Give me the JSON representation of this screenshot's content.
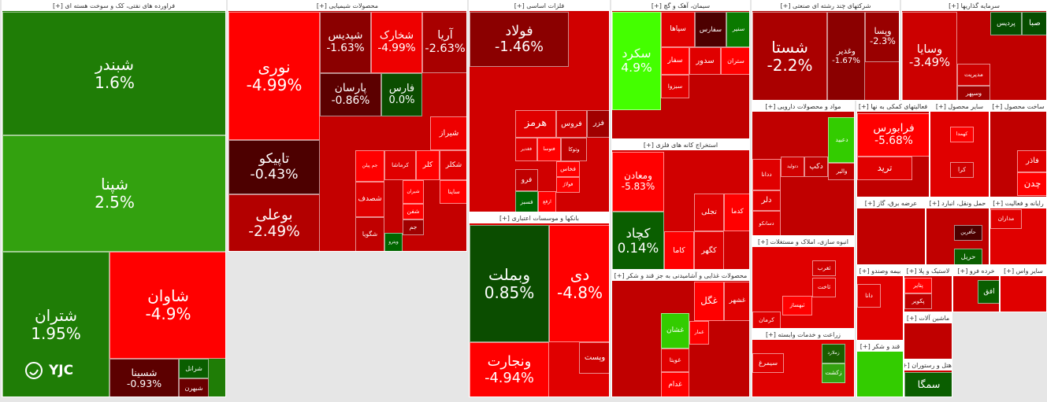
{
  "chart_data": {
    "type": "treemap",
    "logo": "YJC",
    "sectors": [
      {
        "title": "فراورده های نفتی، کک و سوخت هسته ای [+]",
        "names": [
          "شبندر",
          "شپنا",
          "شتران",
          "شاوان",
          "شسینا",
          "شرانل",
          "شبهرن"
        ],
        "values": [
          1.6,
          2.5,
          1.95,
          -4.9,
          -0.93,
          null,
          null
        ],
        "value_labels": [
          "1.6%",
          "2.5%",
          "1.95%",
          "-4.9%",
          "-0.93%",
          null,
          null
        ],
        "colors": [
          "#1f7d06",
          "#33a10f",
          "#1f7d06",
          "#ff0000",
          "#5c0000",
          "#0a5e00",
          "#6b0000"
        ]
      },
      {
        "title": "محصولات شیمیایی [+]",
        "names": [
          "نوری",
          "تاپیکو",
          "بوعلی",
          "شپدیس",
          "شخارک",
          "آریا",
          "پارسان",
          "فارس",
          "شیراز",
          "کرماشا",
          "کلر",
          "شکلر",
          "جم پیلن",
          "شصدف",
          "شگویا",
          "ساینا",
          "شیران",
          "شفن",
          "جم",
          "ویترو"
        ],
        "values": [
          -4.99,
          -0.43,
          -2.49,
          -1.63,
          -4.99,
          -2.63,
          -0.86,
          0,
          null,
          null,
          null,
          null,
          null,
          null,
          null,
          null,
          null,
          null,
          null,
          null
        ],
        "value_labels": [
          "-4.99%",
          "-0.43%",
          "-2.49%",
          "-1.63%",
          "-4.99%",
          "-2.63%",
          "-0.86%",
          "0.0%",
          null,
          null,
          null,
          null,
          null,
          null,
          null,
          null,
          null,
          null,
          null,
          null
        ],
        "colors": [
          "#ff0000",
          "#4d0000",
          "#b30000",
          "#8b0000",
          "#ee0000",
          "#a80000",
          "#5c0000",
          "#0b4d00",
          "#ee0000",
          "#e00000",
          "#ff0000",
          "#e00000",
          "#ff0000",
          "#e00000",
          "#c00000",
          "#ff0000",
          "#ff0000",
          "#ff0000",
          "#a00000",
          "#006600"
        ]
      },
      {
        "title": "فلزات اساسی [+]",
        "names": [
          "فولاد",
          "هرمز",
          "فروس",
          "فزر",
          "فغدیر",
          "فتوسا",
          "وتوکا",
          "فخاس",
          "فولاژ",
          "ارفع",
          "فسبز",
          "فرو"
        ],
        "values": [
          -1.46,
          null,
          null,
          null,
          null,
          null,
          null,
          null,
          null,
          null,
          null,
          null
        ],
        "value_labels": [
          "-1.46%",
          null,
          null,
          null,
          null,
          null,
          null,
          null,
          null,
          null,
          null,
          null
        ],
        "colors": [
          "#8b0000",
          "#e00000",
          "#d00000",
          "#a00000",
          "#e00000",
          "#ff0000",
          "#c00000",
          "#ff0000",
          "#ff0000",
          "#ff0000",
          "#006600",
          "#c00000"
        ]
      },
      {
        "title": "بانکها و موسسات اعتباری [+]",
        "names": [
          "وبملت",
          "دی",
          "ونجارت",
          "وپست"
        ],
        "values": [
          0.85,
          -4.8,
          -4.94,
          null
        ],
        "value_labels": [
          "0.85%",
          "-4.8%",
          "-4.94%",
          null
        ],
        "colors": [
          "#0b4d00",
          "#ff0000",
          "#ff0000",
          "#d00000"
        ]
      },
      {
        "title": "سیمان، آهک و گچ [+]",
        "names": [
          "سکرد",
          "سپاها",
          "سفارس",
          "سنیر",
          "سفار",
          "سدور",
          "ستران",
          "سبزوا"
        ],
        "values": [
          4.9,
          null,
          null,
          null,
          null,
          null,
          null,
          null
        ],
        "value_labels": [
          "4.9%",
          null,
          null,
          null,
          null,
          null,
          null,
          null
        ],
        "colors": [
          "#44ff00",
          "#e00000",
          "#4d0000",
          "#0a7a00",
          "#ff0000",
          "#e00000",
          "#ff0000",
          "#e00000"
        ]
      },
      {
        "title": "استخراج کانه های فلزی [+]",
        "names": [
          "ومعادن",
          "کچاد",
          "کدما",
          "تجلی",
          "کگهر",
          "کاما"
        ],
        "values": [
          -5.83,
          0.14,
          null,
          null,
          null,
          null
        ],
        "value_labels": [
          "-5.83%",
          "0.14%",
          null,
          null,
          null,
          null
        ],
        "colors": [
          "#ff0000",
          "#0a5e00",
          "#ff0000",
          "#e00000",
          "#e00000",
          "#ff0000"
        ]
      },
      {
        "title": "محصولات غذایی و آشامیدنی به جز قند و شکر [+]",
        "names": [
          "غشهر",
          "غگل",
          "غشان",
          "غویتا",
          "غدام",
          "غمار"
        ],
        "values": [
          null,
          null,
          null,
          null,
          null,
          null
        ],
        "value_labels": [
          null,
          null,
          null,
          null,
          null,
          null
        ],
        "colors": [
          "#e00000",
          "#ff0000",
          "#33cc00",
          "#e00000",
          "#ff0000",
          "#ff0000"
        ]
      },
      {
        "title": "شرکتهای چند رشته ای صنعتی [+]",
        "names": [
          "شستا",
          "وغدیر",
          "وپسا"
        ],
        "values": [
          -2.2,
          -1.67,
          -2.3
        ],
        "value_labels": [
          "-2.2%",
          "-1.67%",
          "-2.3%"
        ],
        "colors": [
          "#aa0000",
          "#8b0000",
          "#990000"
        ]
      },
      {
        "title": "سرمایه گذاریها [+]",
        "names": [
          "وسایا",
          "پردیس",
          "صبا",
          "مدیریت",
          "وسپهر"
        ],
        "values": [
          -3.49,
          null,
          null,
          null,
          null
        ],
        "value_labels": [
          "-3.49%",
          null,
          null,
          null,
          null
        ],
        "colors": [
          "#cc0000",
          "#064d00",
          "#064d00",
          "#cc0000",
          "#a00000"
        ]
      },
      {
        "title": "مواد و محصولات دارویی [+]",
        "names": [
          "دعبید",
          "والبر",
          "دتولید",
          "دکپ",
          "ددانا",
          "دلر",
          "دسانکو"
        ],
        "values": [
          null,
          null,
          null,
          null,
          null,
          null,
          null
        ],
        "value_labels": [
          null,
          null,
          null,
          null,
          null,
          null,
          null
        ],
        "colors": [
          "#33cc00",
          "#c00000",
          "#d00000",
          "#c00000",
          "#e00000",
          "#e00000",
          "#e00000"
        ]
      },
      {
        "title": "فعالیتهای کمکی به نها [+]",
        "names": [
          "فرابورس",
          "ترید"
        ],
        "values": [
          -5.68,
          null
        ],
        "value_labels": [
          "-5.68%",
          null
        ],
        "colors": [
          "#ff0000",
          "#e00000"
        ]
      },
      {
        "title": "سایر محصول [+]",
        "names": [
          "کهمدا",
          "کرا"
        ],
        "values": [
          null,
          null
        ],
        "value_labels": [
          null,
          null
        ],
        "colors": [
          "#ff0000",
          "#d00000"
        ]
      },
      {
        "title": "ساخت محصول [+]",
        "names": [
          "فاذر",
          "چدن"
        ],
        "values": [
          null,
          null
        ],
        "value_labels": [
          null,
          null
        ],
        "colors": [
          "#e00000",
          "#ff0000"
        ]
      },
      {
        "title": "انبوه سازی، املاک و مستغلات [+]",
        "names": [
          "ثغرب",
          "ثاخت",
          "ثبهساز",
          "کرمان"
        ],
        "values": [
          null,
          null,
          null,
          null
        ],
        "value_labels": [
          null,
          null,
          null,
          null
        ],
        "colors": [
          "#d00000",
          "#e00000",
          "#ff0000",
          "#e00000"
        ]
      },
      {
        "title": "زراعت و خدمات وابسته [+]",
        "names": [
          "زملارد",
          "سیمرغ",
          "زکشت"
        ],
        "values": [
          null,
          null,
          null
        ],
        "value_labels": [
          null,
          null,
          null
        ],
        "colors": [
          "#1a5e00",
          "#e00000",
          "#33a10f"
        ]
      },
      {
        "title": "عرضه برق، گاز [+]",
        "names": [],
        "values": [],
        "value_labels": [],
        "colors": []
      },
      {
        "title": "حمل ونقل، انبارد [+]",
        "names": [
          "حآفرین",
          "حریل"
        ],
        "values": [
          null,
          null
        ],
        "value_labels": [
          null,
          null
        ],
        "colors": [
          "#4d0000",
          "#0a5e00"
        ]
      },
      {
        "title": "رایانه و فعالیت [+]",
        "names": [
          "مداران"
        ],
        "values": [
          null
        ],
        "value_labels": [
          null
        ],
        "colors": [
          "#e00000"
        ]
      },
      {
        "title": "بیمه وصندو [+]",
        "names": [
          "دانا"
        ],
        "values": [
          null
        ],
        "value_labels": [
          null
        ],
        "colors": [
          "#e00000"
        ]
      },
      {
        "title": "لاستیک و پلا [+]",
        "names": [
          "پتایر",
          "پکویر"
        ],
        "values": [
          null,
          null
        ],
        "value_labels": [
          null,
          null
        ],
        "colors": [
          "#ff0000",
          "#c00000"
        ]
      },
      {
        "title": "خرده فرو [+]",
        "names": [
          "افق"
        ],
        "values": [
          null
        ],
        "value_labels": [
          null
        ],
        "colors": [
          "#0a5e00"
        ]
      },
      {
        "title": "سایر واس [+]",
        "names": [],
        "values": [],
        "value_labels": [],
        "colors": []
      },
      {
        "title": "قند و شکر [+]",
        "names": [],
        "values": [],
        "value_labels": [],
        "colors": []
      },
      {
        "title": "ماشین آلات [+]",
        "names": [],
        "values": [],
        "value_labels": [],
        "colors": []
      },
      {
        "title": "هتل و رستوران [+]",
        "names": [
          "سمگا"
        ],
        "values": [
          null
        ],
        "value_labels": [
          null
        ],
        "colors": [
          "#0a5e00"
        ]
      }
    ]
  }
}
